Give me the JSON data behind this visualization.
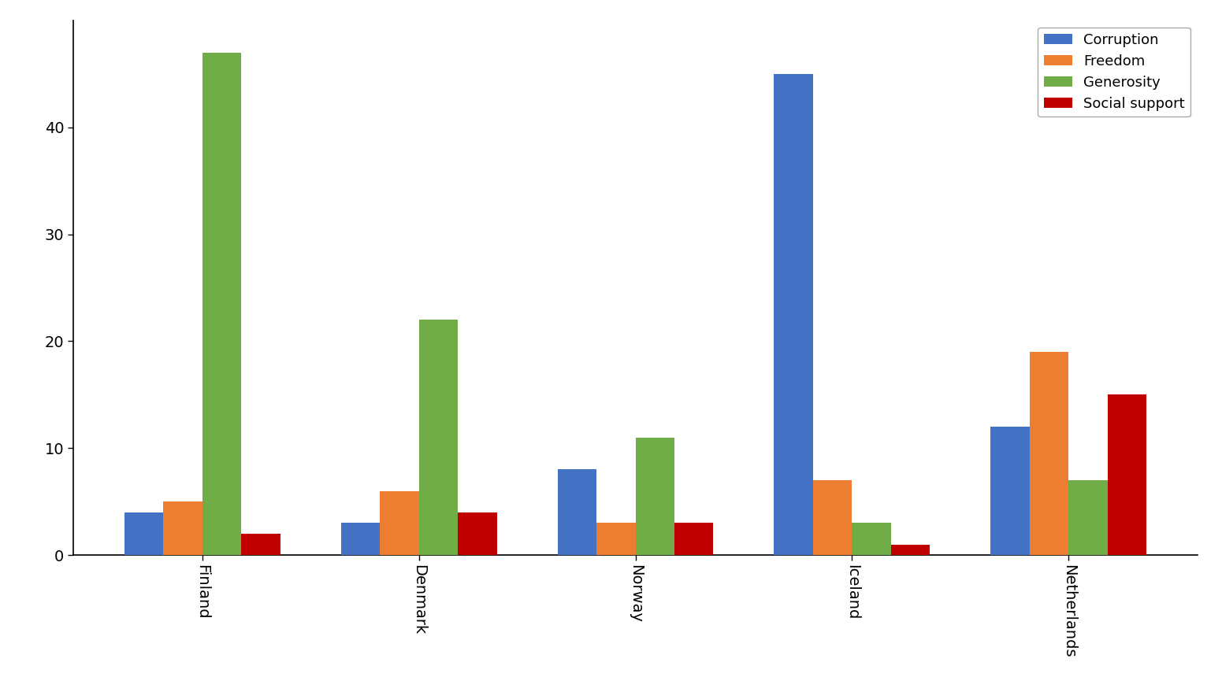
{
  "categories": [
    "Finland",
    "Denmark",
    "Norway",
    "Iceland",
    "Netherlands"
  ],
  "series": {
    "Corruption": [
      4,
      3,
      8,
      45,
      12
    ],
    "Freedom": [
      5,
      6,
      3,
      7,
      19
    ],
    "Generosity": [
      47,
      22,
      11,
      3,
      7
    ],
    "Social support": [
      2,
      4,
      3,
      1,
      15
    ]
  },
  "colors": {
    "Corruption": "#4472c4",
    "Freedom": "#ed7d31",
    "Generosity": "#70ad47",
    "Social support": "#c00000"
  },
  "ylim": [
    0,
    50
  ],
  "yticks": [
    0,
    10,
    20,
    30,
    40
  ],
  "bar_width": 0.18,
  "figsize": [
    15.51,
    8.6
  ],
  "dpi": 100,
  "background_color": "#ffffff",
  "legend_loc": "upper right",
  "xlabel_rotation": -90,
  "tick_fontsize": 14
}
